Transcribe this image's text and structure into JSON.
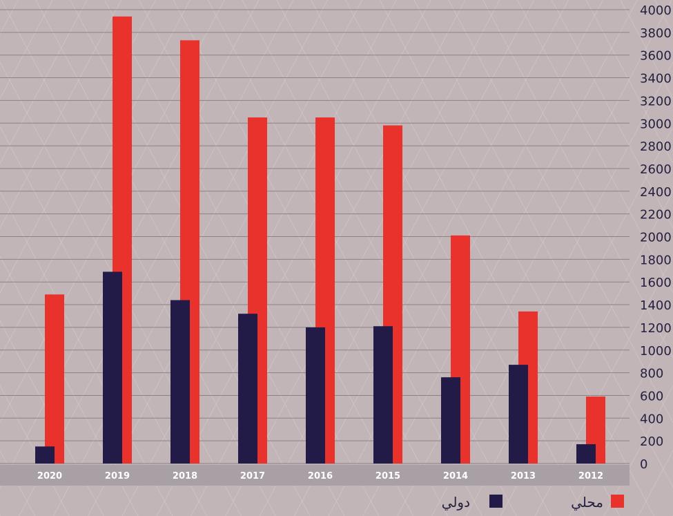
{
  "chart_data": {
    "type": "bar",
    "title": "",
    "xlabel": "",
    "ylabel": "",
    "categories": [
      "2020",
      "2019",
      "2018",
      "2017",
      "2016",
      "2015",
      "2014",
      "2013",
      "2012"
    ],
    "series": [
      {
        "name": "محلي",
        "color": "#e8322b",
        "values": [
          1490,
          3940,
          3730,
          3050,
          3050,
          2980,
          2010,
          1340,
          590
        ]
      },
      {
        "name": "دولي",
        "color": "#221a47",
        "values": [
          150,
          1690,
          1440,
          1320,
          1200,
          1210,
          760,
          870,
          170
        ]
      }
    ],
    "ylim": [
      0,
      4000
    ],
    "yticks": [
      0,
      200,
      400,
      600,
      800,
      1000,
      1200,
      1400,
      1600,
      1800,
      2000,
      2200,
      2400,
      2600,
      2800,
      3000,
      3200,
      3400,
      3600,
      3800,
      4000
    ],
    "grid": true,
    "legend_position": "bottom-right",
    "colors": {
      "gridline": "#8e8186",
      "axis_text": "#24203f",
      "category_band": "#a8a0a4",
      "category_text": "#ffffff"
    }
  }
}
